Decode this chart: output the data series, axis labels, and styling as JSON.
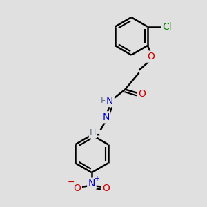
{
  "bg_color": "#e0e0e0",
  "bond_color": "#000000",
  "bond_width": 1.8,
  "atom_colors": {
    "C": "#000000",
    "H": "#607080",
    "N": "#0000cc",
    "O": "#cc0000",
    "Cl": "#008800"
  },
  "font_size": 10,
  "fig_width": 3.0,
  "fig_height": 3.0,
  "dpi": 100,
  "xlim": [
    -3.5,
    3.5
  ],
  "ylim": [
    -5.5,
    4.0
  ]
}
